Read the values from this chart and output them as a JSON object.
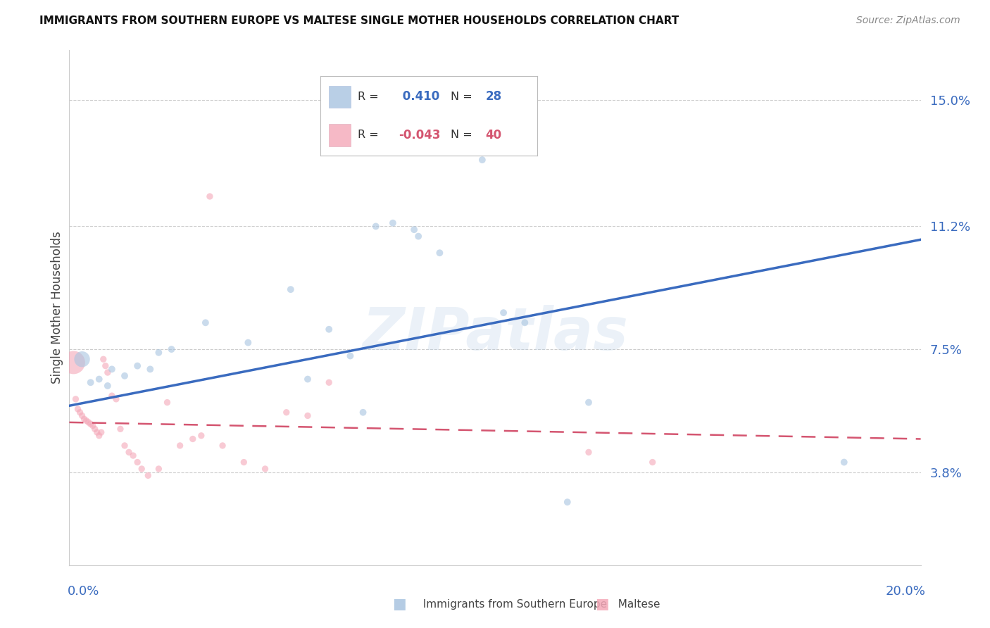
{
  "title": "IMMIGRANTS FROM SOUTHERN EUROPE VS MALTESE SINGLE MOTHER HOUSEHOLDS CORRELATION CHART",
  "source": "Source: ZipAtlas.com",
  "ylabel": "Single Mother Households",
  "ytick_values": [
    3.8,
    7.5,
    11.2,
    15.0
  ],
  "xlim": [
    0.0,
    20.0
  ],
  "ylim": [
    1.0,
    16.5
  ],
  "blue_color": "#a8c4e0",
  "pink_color": "#f4a8b8",
  "trendline_blue": "#3a6bbf",
  "trendline_pink": "#d45570",
  "blue_scatter": [
    [
      0.3,
      7.2
    ],
    [
      0.5,
      6.5
    ],
    [
      0.7,
      6.6
    ],
    [
      0.9,
      6.4
    ],
    [
      1.0,
      6.9
    ],
    [
      1.3,
      6.7
    ],
    [
      1.6,
      7.0
    ],
    [
      1.9,
      6.9
    ],
    [
      2.1,
      7.4
    ],
    [
      2.4,
      7.5
    ],
    [
      3.2,
      8.3
    ],
    [
      4.2,
      7.7
    ],
    [
      5.2,
      9.3
    ],
    [
      5.6,
      6.6
    ],
    [
      6.1,
      8.1
    ],
    [
      6.6,
      7.3
    ],
    [
      6.9,
      5.6
    ],
    [
      7.2,
      11.2
    ],
    [
      7.6,
      11.3
    ],
    [
      8.1,
      11.1
    ],
    [
      8.2,
      10.9
    ],
    [
      8.7,
      10.4
    ],
    [
      9.7,
      13.2
    ],
    [
      10.2,
      8.6
    ],
    [
      10.7,
      8.3
    ],
    [
      12.2,
      5.9
    ],
    [
      18.2,
      4.1
    ],
    [
      11.7,
      2.9
    ]
  ],
  "blue_sizes": [
    260,
    50,
    50,
    50,
    50,
    50,
    50,
    50,
    50,
    50,
    50,
    50,
    50,
    50,
    50,
    50,
    50,
    50,
    50,
    50,
    50,
    50,
    50,
    50,
    50,
    50,
    50,
    50
  ],
  "pink_scatter": [
    [
      0.1,
      7.1
    ],
    [
      0.15,
      6.0
    ],
    [
      0.2,
      5.7
    ],
    [
      0.25,
      5.6
    ],
    [
      0.3,
      5.5
    ],
    [
      0.35,
      5.4
    ],
    [
      0.4,
      5.35
    ],
    [
      0.45,
      5.3
    ],
    [
      0.5,
      5.25
    ],
    [
      0.55,
      5.2
    ],
    [
      0.6,
      5.1
    ],
    [
      0.65,
      5.0
    ],
    [
      0.7,
      4.9
    ],
    [
      0.75,
      5.0
    ],
    [
      0.8,
      7.2
    ],
    [
      0.85,
      7.0
    ],
    [
      0.9,
      6.8
    ],
    [
      1.0,
      6.1
    ],
    [
      1.1,
      6.0
    ],
    [
      1.2,
      5.1
    ],
    [
      1.3,
      4.6
    ],
    [
      1.4,
      4.4
    ],
    [
      1.5,
      4.3
    ],
    [
      1.6,
      4.1
    ],
    [
      1.7,
      3.9
    ],
    [
      1.85,
      3.7
    ],
    [
      2.1,
      3.9
    ],
    [
      2.6,
      4.6
    ],
    [
      2.9,
      4.8
    ],
    [
      3.1,
      4.9
    ],
    [
      3.6,
      4.6
    ],
    [
      4.1,
      4.1
    ],
    [
      4.6,
      3.9
    ],
    [
      5.1,
      5.6
    ],
    [
      5.6,
      5.5
    ],
    [
      6.1,
      6.5
    ],
    [
      3.3,
      12.1
    ],
    [
      2.3,
      5.9
    ],
    [
      12.2,
      4.4
    ],
    [
      13.7,
      4.1
    ]
  ],
  "pink_sizes": [
    560,
    45,
    45,
    45,
    45,
    45,
    45,
    45,
    45,
    45,
    45,
    45,
    45,
    45,
    45,
    45,
    45,
    45,
    45,
    45,
    45,
    45,
    45,
    45,
    45,
    45,
    45,
    45,
    45,
    45,
    45,
    45,
    45,
    45,
    45,
    45,
    45,
    45,
    45,
    45
  ],
  "blue_trend_x": [
    0.0,
    20.0
  ],
  "blue_trend_y": [
    5.8,
    10.8
  ],
  "pink_trend_x": [
    0.0,
    20.0
  ],
  "pink_trend_y": [
    5.3,
    4.8
  ],
  "watermark": "ZIPatlas",
  "background_color": "#ffffff",
  "grid_color": "#cccccc",
  "legend_r1_label": "R = ",
  "legend_r1_val": " 0.410",
  "legend_n1_label": "N = ",
  "legend_n1_val": "28",
  "legend_r2_label": "R = ",
  "legend_r2_val": "-0.043",
  "legend_n2_label": "N = ",
  "legend_n2_val": "40"
}
